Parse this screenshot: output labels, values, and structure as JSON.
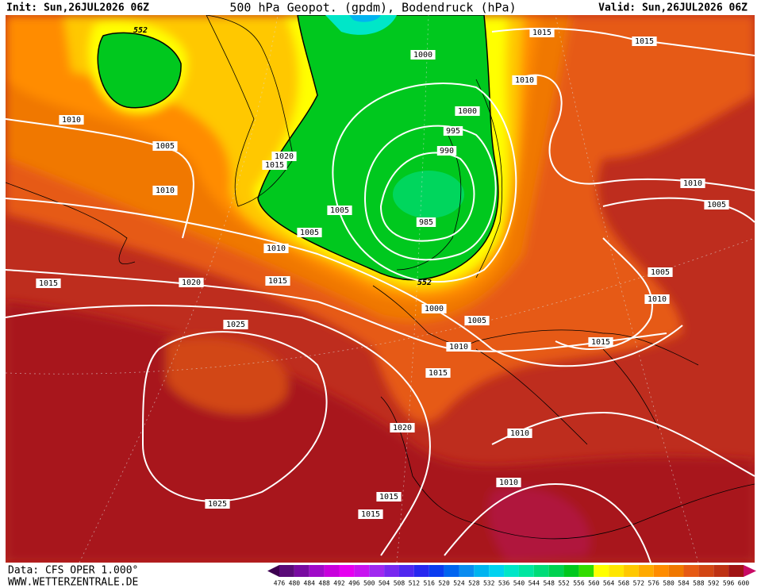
{
  "header": {
    "init": "Init: Sun,26JUL2026 06Z",
    "title": "500 hPa Geopot. (gpdm), Bodendruck (hPa)",
    "valid": "Valid: Sun,26JUL2026 06Z"
  },
  "footer": {
    "data": "Data: CFS OPER 1.000°",
    "site": "WWW.WETTERZENTRALE.DE"
  },
  "colorbar": {
    "labels": [
      476,
      480,
      484,
      488,
      492,
      496,
      500,
      504,
      508,
      512,
      516,
      520,
      524,
      528,
      532,
      536,
      540,
      544,
      548,
      552,
      556,
      560,
      564,
      568,
      572,
      576,
      580,
      584,
      588,
      592,
      596,
      600
    ],
    "colors": [
      "#3c0050",
      "#5a0a78",
      "#780aa0",
      "#a00ac8",
      "#c800dc",
      "#e600f0",
      "#c814f0",
      "#a028f0",
      "#7828f0",
      "#5028f0",
      "#2828f0",
      "#0a3cf0",
      "#0064f0",
      "#0a8cf0",
      "#00b4f0",
      "#00d2f0",
      "#00e6c8",
      "#00e6a0",
      "#00dc78",
      "#00d250",
      "#00c81e",
      "#32dc00",
      "#ffff00",
      "#ffe600",
      "#ffc800",
      "#ffaa00",
      "#ff8c00",
      "#f07800",
      "#e65a14",
      "#d24614",
      "#be3214",
      "#a01414",
      "#c80a64"
    ]
  },
  "contour_labels": [
    "552",
    "1015",
    "1015",
    "1000",
    "1010",
    "1010",
    "1000",
    "995",
    "990",
    "1005",
    "1020",
    "1015",
    "1010",
    "1010",
    "1005",
    "1005",
    "985",
    "1005",
    "1010",
    "552",
    "1005",
    "1015",
    "1020",
    "1015",
    "1010",
    "1000",
    "1005",
    "1025",
    "1015",
    "1010",
    "1015",
    "1020",
    "1010",
    "1010",
    "1015",
    "1025",
    "1015"
  ]
}
